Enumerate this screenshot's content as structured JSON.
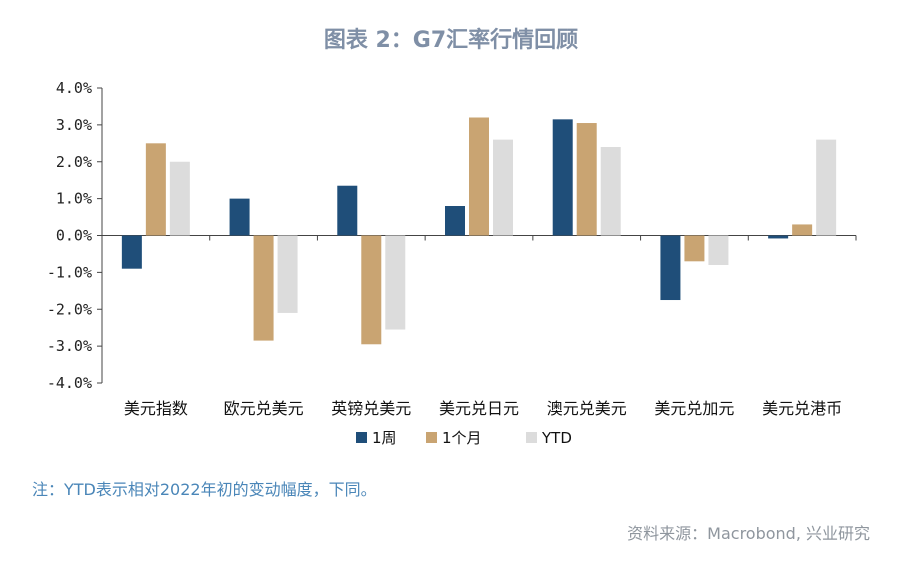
{
  "header": {
    "title": "图表 2：G7汇率行情回顾"
  },
  "chart_data": {
    "type": "bar",
    "title": "图表 2：G7汇率行情回顾",
    "categories": [
      "美元指数",
      "欧元兑美元",
      "英镑兑美元",
      "美元兑日元",
      "澳元兑美元",
      "美元兑加元",
      "美元兑港币"
    ],
    "series": [
      {
        "name": "1周",
        "color": "#1f4e79",
        "values": [
          -0.9,
          1.0,
          1.35,
          0.8,
          3.15,
          -1.75,
          -0.08
        ]
      },
      {
        "name": "1个月",
        "color": "#c9a472",
        "values": [
          2.5,
          -2.85,
          -2.95,
          3.2,
          3.05,
          -0.7,
          0.3
        ]
      },
      {
        "name": "YTD",
        "color": "#dcdcdc",
        "values": [
          2.0,
          -2.1,
          -2.55,
          2.6,
          2.4,
          -0.8,
          2.6
        ]
      }
    ],
    "ylim": [
      -4.0,
      4.0
    ],
    "yticks": [
      "4.0%",
      "3.0%",
      "2.0%",
      "1.0%",
      "0.0%",
      "-1.0%",
      "-2.0%",
      "-3.0%",
      "-4.0%"
    ],
    "xlabel": "",
    "ylabel": "",
    "legend_position": "bottom",
    "grid": false
  },
  "footer": {
    "note": "注：YTD表示相对2022年初的变动幅度，下同。",
    "source": "资料来源：Macrobond, 兴业研究"
  }
}
